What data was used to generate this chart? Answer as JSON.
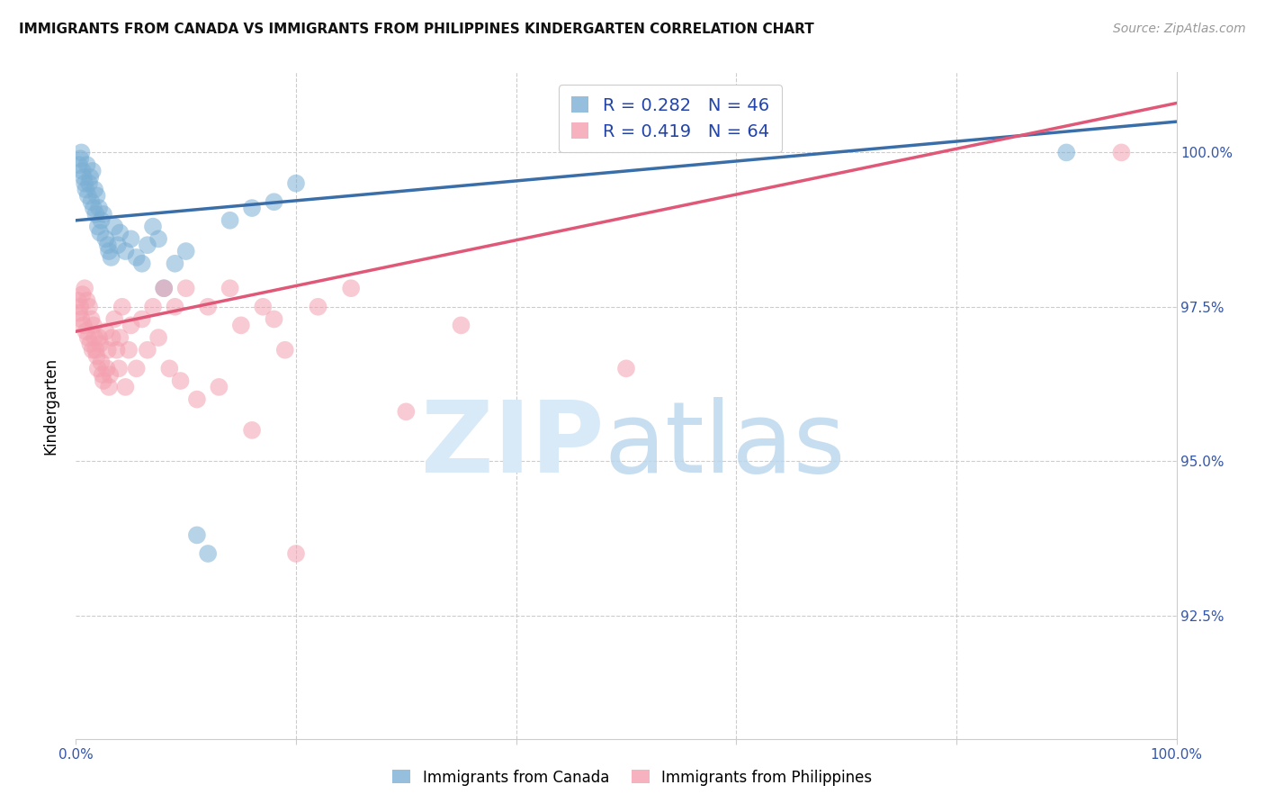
{
  "title": "IMMIGRANTS FROM CANADA VS IMMIGRANTS FROM PHILIPPINES KINDERGARTEN CORRELATION CHART",
  "source": "Source: ZipAtlas.com",
  "ylabel": "Kindergarten",
  "canada_R": 0.282,
  "canada_N": 46,
  "philippines_R": 0.419,
  "philippines_N": 64,
  "canada_color": "#7BAFD4",
  "philippines_color": "#F4A0B0",
  "canada_line_color": "#3A6EA8",
  "philippines_line_color": "#E05878",
  "x_min": 0.0,
  "x_max": 100.0,
  "y_min": 90.5,
  "y_max": 101.3,
  "y_ticks": [
    92.5,
    95.0,
    97.5,
    100.0
  ],
  "y_tick_labels": [
    "92.5%",
    "95.0%",
    "97.5%",
    "100.0%"
  ],
  "canada_line_x0": 0,
  "canada_line_x1": 100,
  "canada_line_y0": 98.9,
  "canada_line_y1": 100.5,
  "philippines_line_x0": 0,
  "philippines_line_x1": 100,
  "philippines_line_y0": 97.1,
  "philippines_line_y1": 100.8,
  "canada_points_x": [
    0.3,
    0.4,
    0.5,
    0.6,
    0.7,
    0.8,
    0.9,
    1.0,
    1.1,
    1.2,
    1.3,
    1.4,
    1.5,
    1.6,
    1.7,
    1.8,
    1.9,
    2.0,
    2.1,
    2.2,
    2.3,
    2.5,
    2.7,
    2.9,
    3.0,
    3.2,
    3.5,
    3.8,
    4.0,
    4.5,
    5.0,
    5.5,
    6.0,
    6.5,
    7.0,
    7.5,
    8.0,
    9.0,
    10.0,
    11.0,
    12.0,
    14.0,
    16.0,
    18.0,
    20.0,
    90.0
  ],
  "canada_points_y": [
    99.8,
    99.9,
    100.0,
    99.7,
    99.6,
    99.5,
    99.4,
    99.8,
    99.3,
    99.5,
    99.6,
    99.2,
    99.7,
    99.1,
    99.4,
    99.0,
    99.3,
    98.8,
    99.1,
    98.7,
    98.9,
    99.0,
    98.6,
    98.5,
    98.4,
    98.3,
    98.8,
    98.5,
    98.7,
    98.4,
    98.6,
    98.3,
    98.2,
    98.5,
    98.8,
    98.6,
    97.8,
    98.2,
    98.4,
    93.8,
    93.5,
    98.9,
    99.1,
    99.2,
    99.5,
    100.0
  ],
  "philippines_points_x": [
    0.2,
    0.3,
    0.4,
    0.5,
    0.6,
    0.7,
    0.8,
    0.9,
    1.0,
    1.1,
    1.2,
    1.3,
    1.4,
    1.5,
    1.6,
    1.7,
    1.8,
    1.9,
    2.0,
    2.1,
    2.2,
    2.3,
    2.4,
    2.5,
    2.7,
    2.8,
    2.9,
    3.0,
    3.1,
    3.3,
    3.5,
    3.7,
    3.9,
    4.0,
    4.2,
    4.5,
    4.8,
    5.0,
    5.5,
    6.0,
    6.5,
    7.0,
    7.5,
    8.0,
    8.5,
    9.0,
    9.5,
    10.0,
    11.0,
    12.0,
    13.0,
    14.0,
    15.0,
    16.0,
    17.0,
    18.0,
    19.0,
    20.0,
    22.0,
    25.0,
    30.0,
    35.0,
    50.0,
    95.0
  ],
  "philippines_points_y": [
    97.6,
    97.4,
    97.5,
    97.3,
    97.7,
    97.2,
    97.8,
    97.1,
    97.6,
    97.0,
    97.5,
    96.9,
    97.3,
    96.8,
    97.2,
    97.0,
    96.8,
    96.7,
    96.5,
    97.0,
    96.9,
    96.6,
    96.4,
    96.3,
    97.1,
    96.5,
    96.8,
    96.2,
    96.4,
    97.0,
    97.3,
    96.8,
    96.5,
    97.0,
    97.5,
    96.2,
    96.8,
    97.2,
    96.5,
    97.3,
    96.8,
    97.5,
    97.0,
    97.8,
    96.5,
    97.5,
    96.3,
    97.8,
    96.0,
    97.5,
    96.2,
    97.8,
    97.2,
    95.5,
    97.5,
    97.3,
    96.8,
    93.5,
    97.5,
    97.8,
    95.8,
    97.2,
    96.5,
    100.0
  ]
}
